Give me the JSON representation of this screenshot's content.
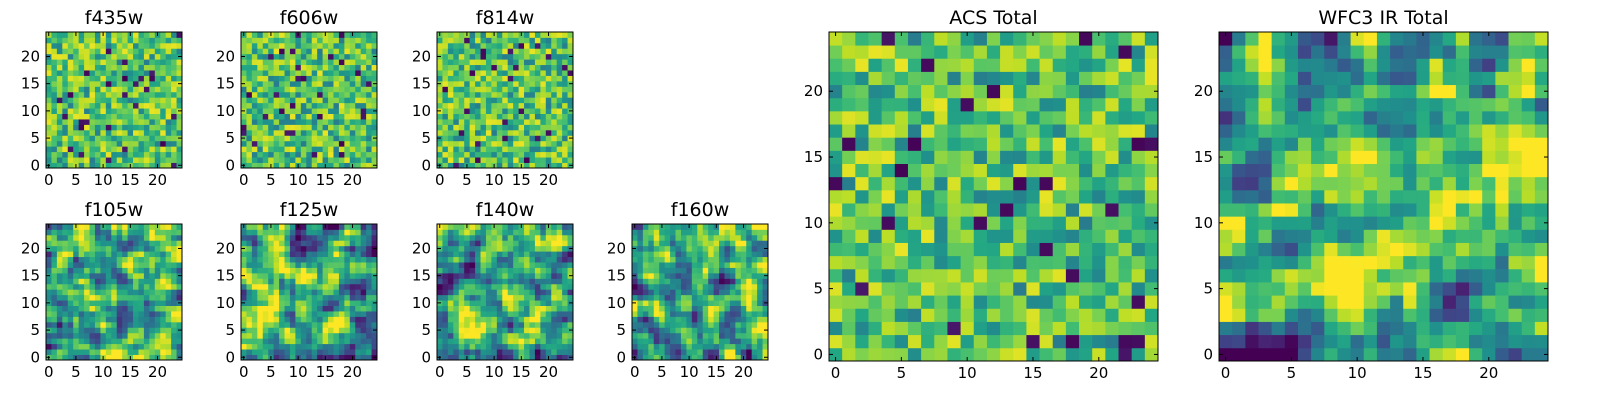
{
  "chart_data": [
    {
      "type": "heatmap",
      "title": "f435w",
      "grid_size": 25,
      "value_range": [
        0,
        1
      ],
      "colormap": "viridis",
      "seed": 11,
      "xticks": [
        "0",
        "5",
        "10",
        "15",
        "20"
      ],
      "yticks": [
        "0",
        "5",
        "10",
        "15",
        "20"
      ]
    },
    {
      "type": "heatmap",
      "title": "f606w",
      "grid_size": 25,
      "value_range": [
        0,
        1
      ],
      "colormap": "viridis",
      "seed": 23,
      "xticks": [
        "0",
        "5",
        "10",
        "15",
        "20"
      ],
      "yticks": [
        "0",
        "5",
        "10",
        "15",
        "20"
      ]
    },
    {
      "type": "heatmap",
      "title": "f814w",
      "grid_size": 25,
      "value_range": [
        0,
        1
      ],
      "colormap": "viridis",
      "seed": 37,
      "xticks": [
        "0",
        "5",
        "10",
        "15",
        "20"
      ],
      "yticks": [
        "0",
        "5",
        "10",
        "15",
        "20"
      ]
    },
    {
      "type": "heatmap",
      "title": "f105w",
      "grid_size": 25,
      "value_range": [
        0,
        1
      ],
      "colormap": "viridis",
      "seed": 41,
      "xticks": [
        "0",
        "5",
        "10",
        "15",
        "20"
      ],
      "yticks": [
        "0",
        "5",
        "10",
        "15",
        "20"
      ]
    },
    {
      "type": "heatmap",
      "title": "f125w",
      "grid_size": 25,
      "value_range": [
        0,
        1
      ],
      "colormap": "viridis",
      "seed": 53,
      "xticks": [
        "0",
        "5",
        "10",
        "15",
        "20"
      ],
      "yticks": [
        "0",
        "5",
        "10",
        "15",
        "20"
      ]
    },
    {
      "type": "heatmap",
      "title": "f140w",
      "grid_size": 25,
      "value_range": [
        0,
        1
      ],
      "colormap": "viridis",
      "seed": 67,
      "xticks": [
        "0",
        "5",
        "10",
        "15",
        "20"
      ],
      "yticks": [
        "0",
        "5",
        "10",
        "15",
        "20"
      ]
    },
    {
      "type": "heatmap",
      "title": "f160w",
      "grid_size": 25,
      "value_range": [
        0,
        1
      ],
      "colormap": "viridis",
      "seed": 79,
      "xticks": [
        "0",
        "5",
        "10",
        "15",
        "20"
      ],
      "yticks": [
        "0",
        "5",
        "10",
        "15",
        "20"
      ]
    },
    {
      "type": "heatmap",
      "title": "ACS Total",
      "grid_size": 25,
      "value_range": [
        0,
        1
      ],
      "colormap": "viridis",
      "seed": 83,
      "xticks": [
        "0",
        "5",
        "10",
        "15",
        "20"
      ],
      "yticks": [
        "0",
        "5",
        "10",
        "15",
        "20"
      ]
    },
    {
      "type": "heatmap",
      "title": "WFC3 IR Total",
      "grid_size": 25,
      "value_range": [
        0,
        1
      ],
      "colormap": "viridis",
      "seed": 97,
      "xticks": [
        "0",
        "5",
        "10",
        "15",
        "20"
      ],
      "yticks": [
        "0",
        "5",
        "10",
        "15",
        "20"
      ]
    }
  ]
}
